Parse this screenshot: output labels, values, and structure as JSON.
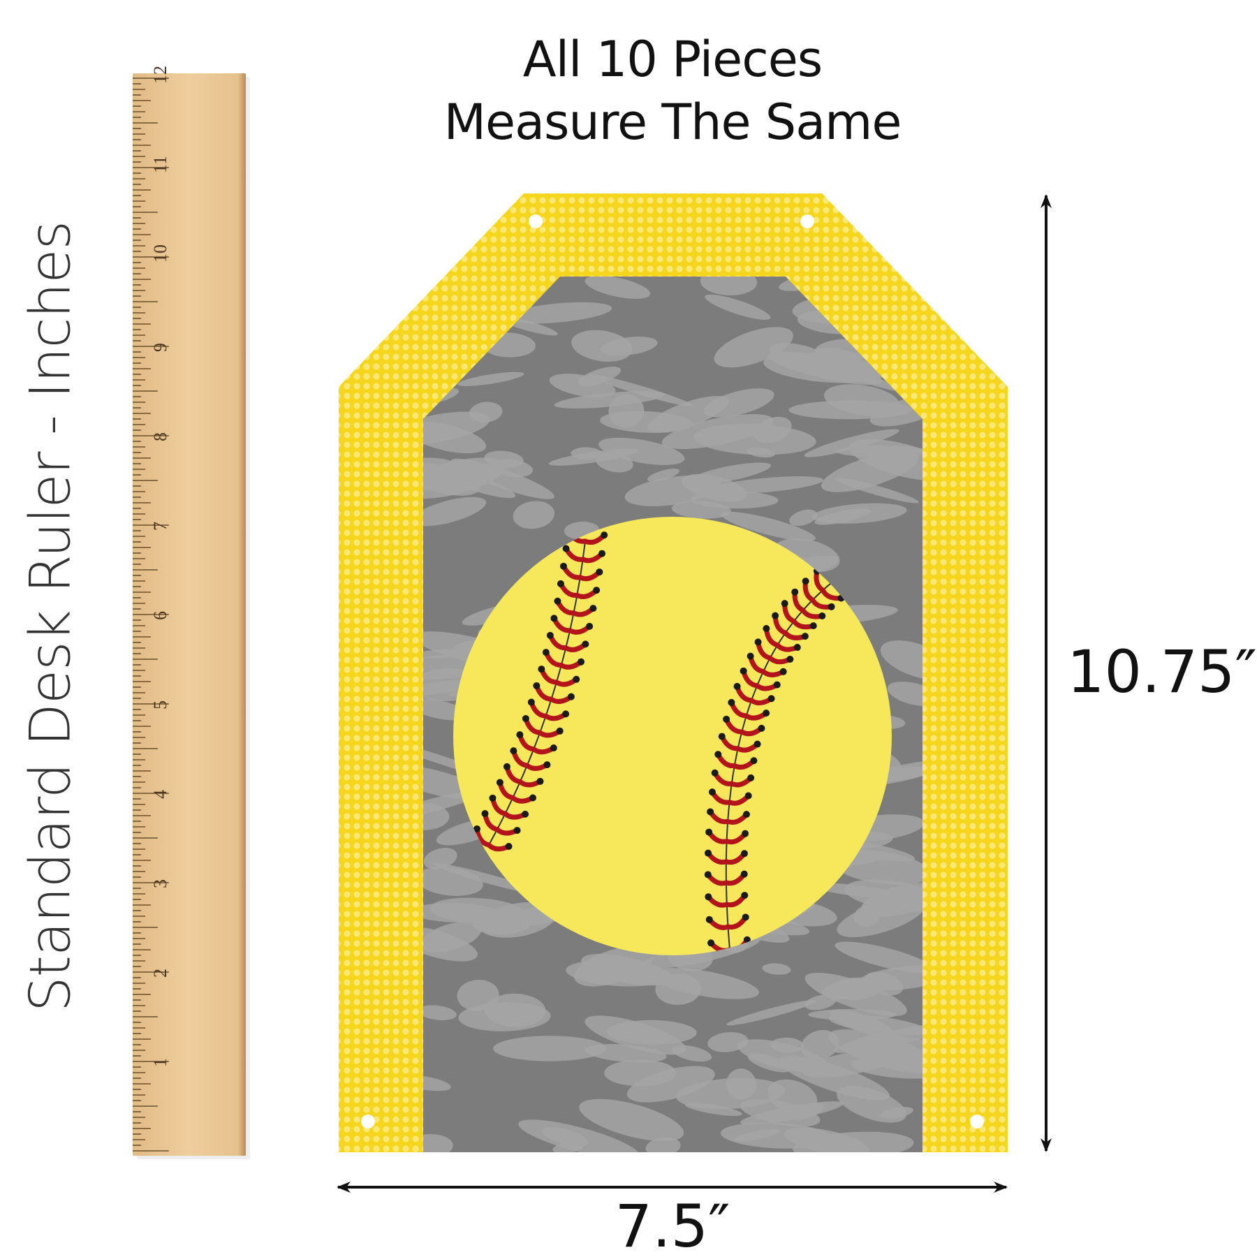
{
  "heading": {
    "line1": "All 10 Pieces",
    "line2": "Measure The Same"
  },
  "ruler": {
    "label": "Standard Desk Ruler - Inches",
    "numbers": [
      "1",
      "2",
      "3",
      "4",
      "5",
      "6",
      "7",
      "8",
      "9",
      "10",
      "11",
      "12"
    ]
  },
  "dimensions": {
    "height": "10.75″",
    "width": "7.5″"
  },
  "colors": {
    "frame_yellow": "#f5d61c",
    "dot_yellow": "#fbe773",
    "gray": "#7c7c7c",
    "gray_light": "#a4a4a4",
    "ball": "#f6e85a",
    "stitch": "#b3141c",
    "wood": "#e9c492"
  },
  "banner_piece": {
    "motif": "softball-icon",
    "holes": 4
  }
}
